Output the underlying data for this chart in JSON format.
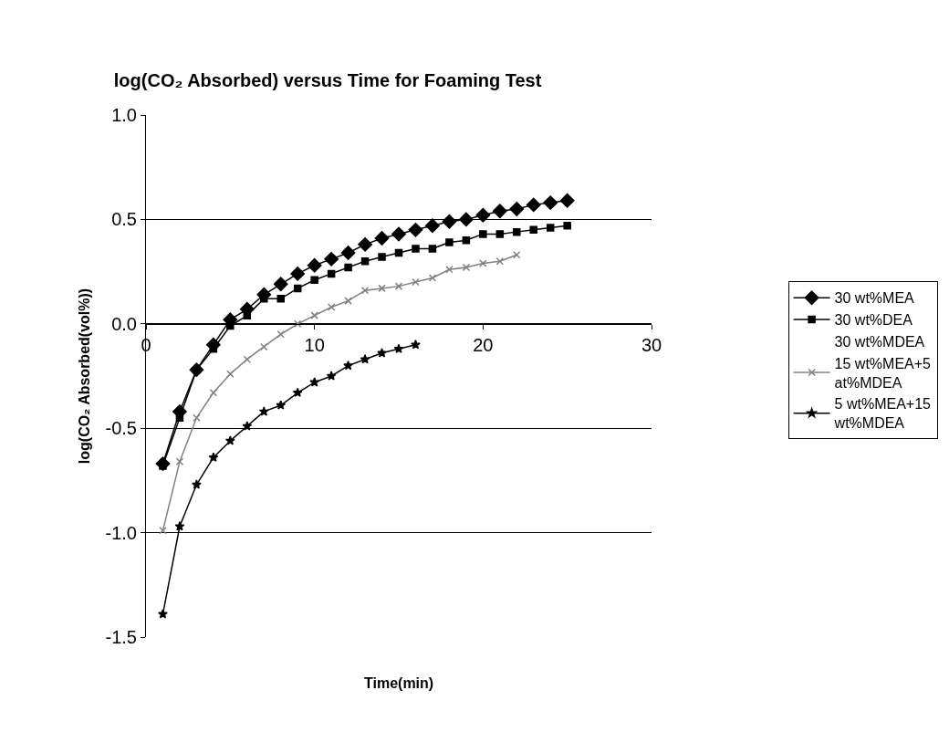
{
  "chart_data": {
    "type": "line",
    "title": "log(CO₂ Absorbed) versus Time for Foaming Test",
    "xlabel": "Time(min)",
    "ylabel": "log(CO₂ Absorbed(vol%))",
    "x": [
      1,
      2,
      3,
      4,
      5,
      6,
      7,
      8,
      9,
      10,
      11,
      12,
      13,
      14,
      15,
      16,
      17,
      18,
      19,
      20,
      21,
      22,
      23,
      24,
      25
    ],
    "xlim": [
      0,
      30
    ],
    "xticks": [
      0,
      10,
      20,
      30
    ],
    "ylim": [
      -1.5,
      1.0
    ],
    "yticks": [
      {
        "value": -1.5,
        "label": "-1.5"
      },
      {
        "value": -1.0,
        "label": "-1.0"
      },
      {
        "value": -0.5,
        "label": "-0.5"
      },
      {
        "value": 0.0,
        "label": "0.0"
      },
      {
        "value": 0.5,
        "label": "0.5"
      },
      {
        "value": 1.0,
        "label": "1.0"
      }
    ],
    "grid": "y",
    "legend": "right",
    "series": [
      {
        "name": "30 wt%MEA",
        "color": "#000000",
        "marker": "diamond",
        "values": [
          -0.67,
          -0.42,
          -0.22,
          -0.1,
          0.02,
          0.07,
          0.14,
          0.19,
          0.24,
          0.28,
          0.31,
          0.34,
          0.38,
          0.41,
          0.43,
          0.45,
          0.47,
          0.49,
          0.5,
          0.52,
          0.54,
          0.55,
          0.57,
          0.58,
          0.59
        ]
      },
      {
        "name": "30 wt%DEA",
        "color": "#000000",
        "marker": "square",
        "values": [
          -0.68,
          -0.45,
          -0.22,
          -0.12,
          -0.01,
          0.04,
          0.12,
          0.12,
          0.17,
          0.21,
          0.24,
          0.27,
          0.3,
          0.32,
          0.34,
          0.36,
          0.36,
          0.39,
          0.4,
          0.43,
          0.43,
          0.44,
          0.45,
          0.46,
          0.47
        ]
      },
      {
        "name": "30 wt%MDEA",
        "marker": "none",
        "values": [
          null,
          null,
          null,
          null,
          null,
          null,
          null,
          null,
          null,
          null,
          null,
          null,
          null,
          null,
          null,
          null,
          null,
          null,
          null,
          null,
          null,
          null,
          null,
          null,
          null
        ]
      },
      {
        "name": "15 wt%MEA+5 at%MDEA",
        "color": "#808080",
        "marker": "cross",
        "values": [
          -0.99,
          -0.66,
          -0.45,
          -0.33,
          -0.24,
          -0.17,
          -0.11,
          -0.05,
          0.0,
          0.04,
          0.08,
          0.11,
          0.16,
          0.17,
          0.18,
          0.2,
          0.22,
          0.26,
          0.27,
          0.29,
          0.3,
          0.33,
          null,
          null,
          null
        ]
      },
      {
        "name": "5 wt%MEA+15 wt%MDEA",
        "color": "#000000",
        "marker": "star",
        "values": [
          -1.39,
          -0.97,
          -0.77,
          -0.64,
          -0.56,
          -0.49,
          -0.42,
          -0.39,
          -0.33,
          -0.28,
          -0.25,
          -0.2,
          -0.17,
          -0.14,
          -0.12,
          -0.1,
          null,
          null,
          null,
          null,
          null,
          null,
          null,
          null,
          null
        ]
      }
    ]
  }
}
